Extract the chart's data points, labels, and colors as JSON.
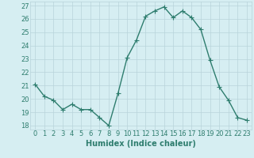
{
  "x": [
    0,
    1,
    2,
    3,
    4,
    5,
    6,
    7,
    8,
    9,
    10,
    11,
    12,
    13,
    14,
    15,
    16,
    17,
    18,
    19,
    20,
    21,
    22,
    23
  ],
  "y": [
    21.1,
    20.2,
    19.9,
    19.2,
    19.6,
    19.2,
    19.2,
    18.6,
    18.0,
    20.4,
    23.1,
    24.4,
    26.2,
    26.6,
    26.9,
    26.1,
    26.6,
    26.1,
    25.2,
    22.9,
    20.9,
    19.9,
    18.6,
    18.4
  ],
  "line_color": "#2e7d6e",
  "marker": "+",
  "marker_size": 4,
  "bg_color": "#d6eef2",
  "grid_color": "#b8d4da",
  "xlabel": "Humidex (Indice chaleur)",
  "xlim": [
    -0.5,
    23.5
  ],
  "ylim": [
    17.7,
    27.3
  ],
  "xticks": [
    0,
    1,
    2,
    3,
    4,
    5,
    6,
    7,
    8,
    9,
    10,
    11,
    12,
    13,
    14,
    15,
    16,
    17,
    18,
    19,
    20,
    21,
    22,
    23
  ],
  "xtick_labels": [
    "0",
    "1",
    "2",
    "3",
    "4",
    "5",
    "6",
    "7",
    "8",
    "9",
    "10",
    "11",
    "12",
    "13",
    "14",
    "15",
    "16",
    "17",
    "18",
    "19",
    "20",
    "21",
    "22",
    "23"
  ],
  "yticks": [
    18,
    19,
    20,
    21,
    22,
    23,
    24,
    25,
    26,
    27
  ],
  "axis_label_color": "#2e7d6e",
  "tick_label_color": "#2e7d6e",
  "font_size": 6,
  "xlabel_font_size": 7,
  "line_width": 1.0,
  "marker_edge_width": 0.8
}
